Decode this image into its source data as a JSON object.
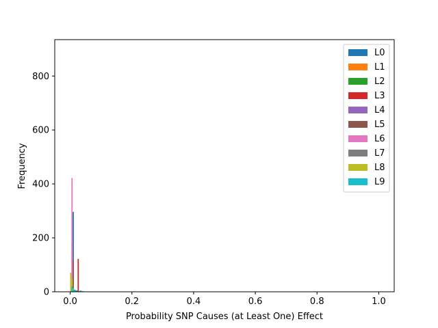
{
  "chart_data": {
    "type": "bar",
    "title": "",
    "xlabel": "Probability SNP Causes (at Least One) Effect",
    "ylabel": "Frequency",
    "xlim": [
      -0.05,
      1.05
    ],
    "ylim": [
      0,
      935
    ],
    "xticks": [
      0.0,
      0.2,
      0.4,
      0.6,
      0.8,
      1.0
    ],
    "xtick_labels": [
      "0.0",
      "0.2",
      "0.4",
      "0.6",
      "0.8",
      "1.0"
    ],
    "yticks": [
      0,
      200,
      400,
      600,
      800
    ],
    "ytick_labels": [
      "0",
      "200",
      "400",
      "600",
      "800"
    ],
    "grid": false,
    "legend_position": "top-right",
    "series": [
      {
        "name": "L0",
        "color": "#1f77b4",
        "bins": [
          [
            0.0,
            0.004,
            2
          ],
          [
            0.004,
            0.008,
            30
          ],
          [
            0.008,
            0.012,
            296
          ],
          [
            0.012,
            0.016,
            4
          ]
        ]
      },
      {
        "name": "L1",
        "color": "#ff7f0e",
        "bins": [
          [
            0.004,
            0.008,
            181
          ],
          [
            0.008,
            0.012,
            20
          ],
          [
            0.012,
            0.016,
            3
          ]
        ]
      },
      {
        "name": "L2",
        "color": "#2ca02c",
        "bins": [
          [
            0.004,
            0.008,
            14
          ],
          [
            0.008,
            0.012,
            10
          ],
          [
            0.012,
            0.016,
            8
          ],
          [
            0.016,
            0.02,
            6
          ],
          [
            0.02,
            0.024,
            5
          ]
        ]
      },
      {
        "name": "L3",
        "color": "#d62728",
        "bins": [
          [
            0.004,
            0.008,
            6
          ],
          [
            0.008,
            0.012,
            3
          ],
          [
            0.024,
            0.028,
            122
          ]
        ]
      },
      {
        "name": "L4",
        "color": "#9467bd",
        "bins": [
          [
            0.008,
            0.012,
            60
          ],
          [
            0.012,
            0.016,
            5
          ]
        ]
      },
      {
        "name": "L5",
        "color": "#8c564b",
        "bins": [
          [
            0.008,
            0.012,
            117
          ],
          [
            0.012,
            0.016,
            5
          ],
          [
            0.024,
            0.028,
            3
          ]
        ]
      },
      {
        "name": "L6",
        "color": "#e377c2",
        "bins": [
          [
            0.004,
            0.008,
            422
          ],
          [
            0.008,
            0.012,
            10
          ]
        ]
      },
      {
        "name": "L7",
        "color": "#7f7f7f",
        "bins": [
          [
            0.0,
            0.004,
            3
          ],
          [
            0.004,
            0.008,
            8
          ]
        ]
      },
      {
        "name": "L8",
        "color": "#bcbd22",
        "bins": [
          [
            0.0,
            0.004,
            71
          ],
          [
            0.004,
            0.008,
            47
          ],
          [
            0.008,
            0.012,
            12
          ],
          [
            0.012,
            0.016,
            3
          ]
        ]
      },
      {
        "name": "L9",
        "color": "#17becf",
        "bins": [
          [
            0.004,
            0.008,
            20
          ],
          [
            0.008,
            0.012,
            8
          ],
          [
            0.012,
            0.016,
            6
          ],
          [
            0.016,
            0.02,
            4
          ],
          [
            0.02,
            0.024,
            3
          ],
          [
            0.028,
            0.032,
            3
          ],
          [
            0.032,
            0.036,
            5
          ],
          [
            0.036,
            0.04,
            3
          ],
          [
            0.04,
            0.044,
            2
          ]
        ]
      }
    ]
  }
}
